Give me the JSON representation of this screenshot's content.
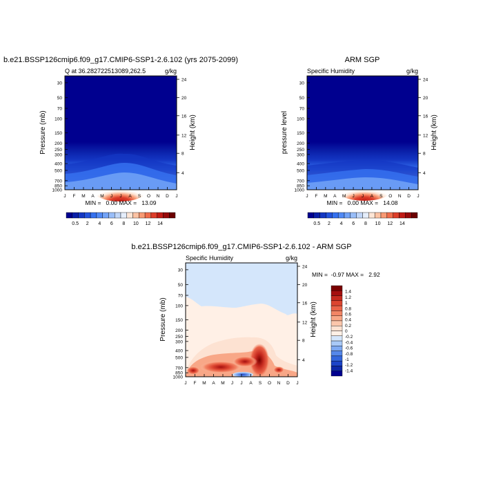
{
  "chart_data": [
    {
      "type": "heatmap",
      "title": "b.e21.BSSP126cmip6.f09_g17.CMIP6-SSP1-2.6.102 (yrs 2075-2099)",
      "subtitle_left": "Q at 36.282722513089,262.5",
      "subtitle_right": "g/kg",
      "ylabel": "Pressure (mb)",
      "ylabel_right": "Height (km)",
      "x_ticks": [
        "J",
        "F",
        "M",
        "A",
        "M",
        "J",
        "J",
        "A",
        "S",
        "O",
        "N",
        "D",
        "J"
      ],
      "y_ticks": [
        "30",
        "50",
        "70",
        "100",
        "150",
        "200",
        "250",
        "300",
        "400",
        "500",
        "700",
        "850",
        "1000"
      ],
      "y_ticks_right": [
        "24",
        "20",
        "16",
        "12",
        "8",
        "4"
      ],
      "stats": "MIN =   0.00 MAX =   13.09",
      "colorbar": {
        "levels": [
          "0.5",
          "2",
          "4",
          "6",
          "8",
          "10",
          "12",
          "14"
        ],
        "colors": [
          "#00008f",
          "#0a1fa8",
          "#1437c3",
          "#2353dc",
          "#3570ef",
          "#5089f5",
          "#72a3f7",
          "#98bdf8",
          "#c0d6f8",
          "#e5eefb",
          "#fde6d6",
          "#fcc3a4",
          "#f89a74",
          "#f06c4b",
          "#dd3e2a",
          "#c01b15",
          "#970a0a",
          "#6b0000"
        ]
      },
      "min": 0.0,
      "max": 13.09
    },
    {
      "type": "heatmap",
      "title": "ARM SGP",
      "subtitle_left": "Specific Humidity",
      "subtitle_right": "g/kg",
      "ylabel": "pressure level",
      "ylabel_right": "Height (km)",
      "x_ticks": [
        "J",
        "F",
        "M",
        "A",
        "M",
        "J",
        "J",
        "A",
        "S",
        "O",
        "N",
        "D",
        "J"
      ],
      "y_ticks": [
        "30",
        "50",
        "70",
        "100",
        "150",
        "200",
        "250",
        "300",
        "400",
        "500",
        "700",
        "850",
        "1000"
      ],
      "y_ticks_right": [
        "24",
        "20",
        "16",
        "12",
        "8",
        "4"
      ],
      "stats": "MIN =   0.00 MAX =   14.08",
      "colorbar": {
        "levels": [
          "0.5",
          "2",
          "4",
          "6",
          "8",
          "10",
          "12",
          "14"
        ],
        "colors": [
          "#00008f",
          "#0a1fa8",
          "#1437c3",
          "#2353dc",
          "#3570ef",
          "#5089f5",
          "#72a3f7",
          "#98bdf8",
          "#c0d6f8",
          "#e5eefb",
          "#fde6d6",
          "#fcc3a4",
          "#f89a74",
          "#f06c4b",
          "#dd3e2a",
          "#c01b15",
          "#970a0a",
          "#6b0000"
        ]
      },
      "min": 0.0,
      "max": 14.08
    },
    {
      "type": "heatmap",
      "title": "b.e21.BSSP126cmip6.f09_g17.CMIP6-SSP1-2.6.102 - ARM SGP",
      "subtitle_left": "Specific Humidity",
      "subtitle_right": "g/kg",
      "ylabel": "Pressure (mb)",
      "ylabel_right": "Height (km)",
      "x_ticks": [
        "J",
        "F",
        "M",
        "A",
        "M",
        "J",
        "J",
        "A",
        "S",
        "O",
        "N",
        "D",
        "J"
      ],
      "y_ticks": [
        "30",
        "50",
        "70",
        "100",
        "150",
        "200",
        "250",
        "300",
        "400",
        "500",
        "700",
        "850",
        "1000"
      ],
      "y_ticks_right": [
        "24",
        "20",
        "16",
        "12",
        "8",
        "4"
      ],
      "stats": "MIN =  -0.97 MAX =   2.92",
      "colorbar": {
        "levels": [
          "1.4",
          "1.2",
          "1",
          "0.8",
          "0.6",
          "0.4",
          "0.2",
          "0",
          "-0.2",
          "-0.4",
          "-0.6",
          "-0.8",
          "-1",
          "-1.2",
          "-1.4"
        ],
        "colors": [
          "#7a0000",
          "#a50f0f",
          "#c62a1f",
          "#dc4530",
          "#ea6449",
          "#f38565",
          "#f8a787",
          "#fbc6ab",
          "#fde2d2",
          "#fff0e6",
          "#d4e6fb",
          "#a9c9f7",
          "#7ea9f2",
          "#5587ea",
          "#3366dd",
          "#1c44c8",
          "#0d28a8",
          "#00008f"
        ]
      },
      "min": -0.97,
      "max": 2.92
    }
  ]
}
